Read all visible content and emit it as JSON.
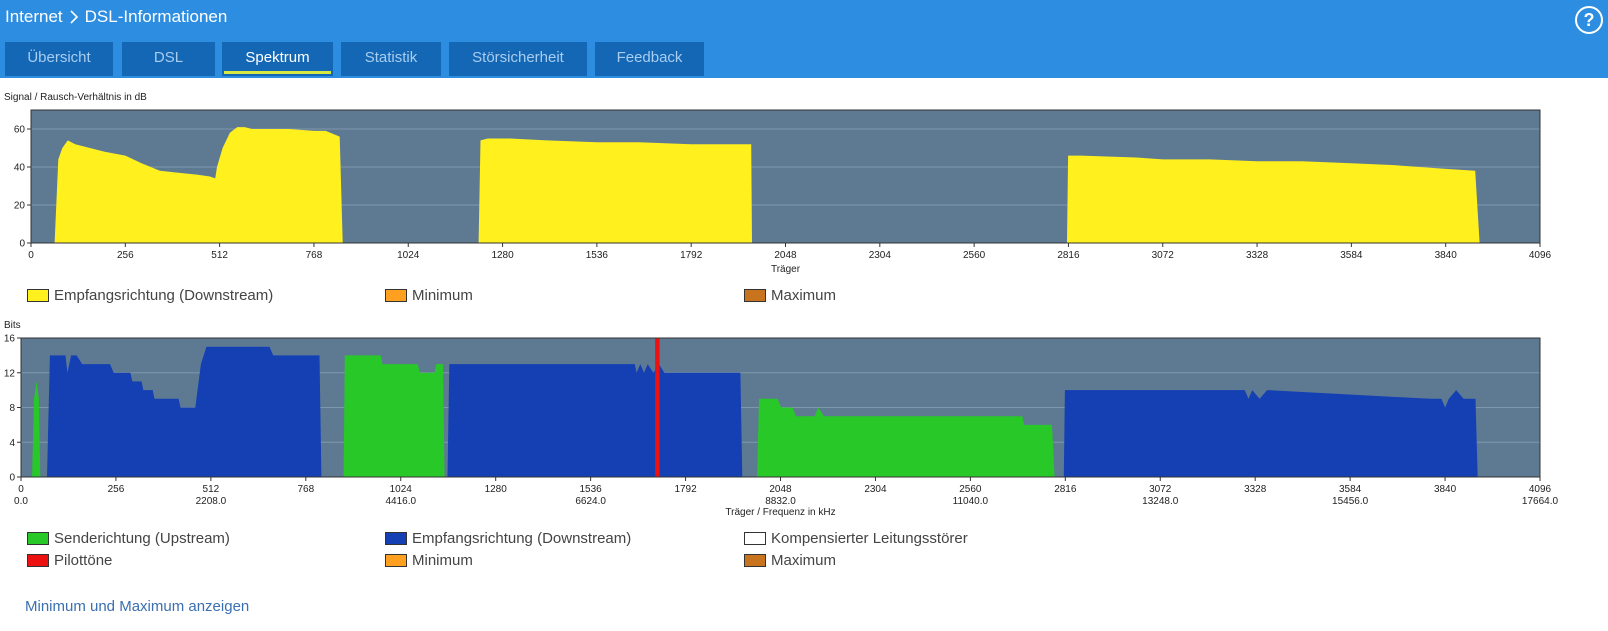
{
  "header": {
    "breadcrumb": [
      "Internet",
      "DSL-Informationen"
    ],
    "help_symbol": "?"
  },
  "tabs": [
    {
      "label": "Übersicht",
      "active": false
    },
    {
      "label": "DSL",
      "active": false
    },
    {
      "label": "Spektrum",
      "active": true
    },
    {
      "label": "Statistik",
      "active": false
    },
    {
      "label": "Störsicherheit",
      "active": false
    },
    {
      "label": "Feedback",
      "active": false
    }
  ],
  "colors": {
    "header_bg": "#2d8de0",
    "tab_bg": "#1467b5",
    "plot_bg": "#5e7a93",
    "downstream_snr": "#fff01e",
    "upstream_bits": "#28c828",
    "downstream_bits": "#1440b4",
    "pilot": "#ee1111",
    "minimum": "#ffa020",
    "maximum": "#c8741e"
  },
  "snr_chart": {
    "title": "Signal / Rausch-Verhältnis in dB",
    "xlabel": "Träger",
    "legend": [
      {
        "label": "Empfangsrichtung (Downstream)",
        "color": "#fff01e"
      },
      {
        "label": "Minimum",
        "color": "#ffa020"
      },
      {
        "label": "Maximum",
        "color": "#c8741e"
      }
    ]
  },
  "bits_chart": {
    "title": "Bits",
    "xlabel": "Träger / Frequenz in kHz",
    "legend": [
      {
        "label": "Senderichtung (Upstream)",
        "color": "#28c828"
      },
      {
        "label": "Empfangsrichtung (Downstream)",
        "color": "#1440b4"
      },
      {
        "label": "Kompensierter Leitungsstörer",
        "color": "#ffffff"
      },
      {
        "label": "Pilottöne",
        "color": "#ee1111"
      },
      {
        "label": "Minimum",
        "color": "#ffa020"
      },
      {
        "label": "Maximum",
        "color": "#c8741e"
      }
    ]
  },
  "chart_data": [
    {
      "type": "area",
      "title": "Signal / Rausch-Verhältnis in dB",
      "xlabel": "Träger",
      "ylabel": "",
      "xlim": [
        0,
        4096
      ],
      "ylim": [
        0,
        70
      ],
      "x_ticks": [
        0,
        256,
        512,
        768,
        1024,
        1280,
        1536,
        1792,
        2048,
        2304,
        2560,
        2816,
        3072,
        3328,
        3584,
        3840,
        4096
      ],
      "y_ticks": [
        0,
        20,
        40,
        60
      ],
      "grid": true,
      "legend_position": "bottom",
      "series": [
        {
          "name": "Empfangsrichtung (Downstream)",
          "color": "#fff01e",
          "segments": [
            [
              [
                64,
                0
              ],
              [
                74,
                44
              ],
              [
                85,
                50
              ],
              [
                100,
                54
              ],
              [
                120,
                52
              ],
              [
                160,
                50
              ],
              [
                200,
                48
              ],
              [
                256,
                46
              ],
              [
                300,
                42
              ],
              [
                350,
                38
              ],
              [
                400,
                37
              ],
              [
                450,
                36
              ],
              [
                486,
                35
              ],
              [
                500,
                34
              ],
              [
                505,
                40
              ],
              [
                520,
                50
              ],
              [
                540,
                58
              ],
              [
                560,
                61
              ],
              [
                580,
                61
              ],
              [
                600,
                60
              ],
              [
                700,
                60
              ],
              [
                768,
                59
              ],
              [
                800,
                59
              ],
              [
                838,
                56
              ],
              [
                846,
                0
              ]
            ],
            [
              [
                1215,
                0
              ],
              [
                1220,
                54
              ],
              [
                1240,
                55
              ],
              [
                1300,
                55
              ],
              [
                1400,
                54
              ],
              [
                1536,
                53
              ],
              [
                1650,
                53
              ],
              [
                1792,
                52
              ],
              [
                1955,
                52
              ],
              [
                1957,
                0
              ]
            ],
            [
              [
                2812,
                0
              ],
              [
                2815,
                46
              ],
              [
                2850,
                46
              ],
              [
                3000,
                45
              ],
              [
                3072,
                44
              ],
              [
                3200,
                44
              ],
              [
                3328,
                43
              ],
              [
                3450,
                43
              ],
              [
                3584,
                42
              ],
              [
                3700,
                41
              ],
              [
                3840,
                39
              ],
              [
                3920,
                38
              ],
              [
                3932,
                0
              ]
            ]
          ]
        }
      ]
    },
    {
      "type": "area",
      "title": "Bits",
      "xlabel": "Träger / Frequenz in kHz",
      "ylabel": "",
      "xlim": [
        0,
        4096
      ],
      "ylim": [
        0,
        16
      ],
      "x_ticks": [
        0,
        256,
        512,
        768,
        1024,
        1280,
        1536,
        1792,
        2048,
        2304,
        2560,
        2816,
        3072,
        3328,
        3584,
        3840,
        4096
      ],
      "x_freq_labels": [
        "0.0",
        "2208.0",
        "4416.0",
        "6624.0",
        "8832.0",
        "11040.0",
        "13248.0",
        "15456.0",
        "17664.0"
      ],
      "y_ticks": [
        0,
        4,
        8,
        12,
        16
      ],
      "grid": true,
      "legend_position": "bottom",
      "series": [
        {
          "name": "Senderichtung (Upstream)",
          "color": "#28c828",
          "segments": [
            [
              [
                30,
                0
              ],
              [
                35,
                9
              ],
              [
                42,
                11
              ],
              [
                48,
                9
              ],
              [
                52,
                0
              ]
            ],
            [
              [
                870,
                0
              ],
              [
                873,
                14
              ],
              [
                970,
                14
              ],
              [
                975,
                13
              ],
              [
                1070,
                13
              ],
              [
                1075,
                12
              ],
              [
                1115,
                12
              ],
              [
                1120,
                13
              ],
              [
                1138,
                13
              ],
              [
                1142,
                0
              ]
            ],
            [
              [
                1985,
                0
              ],
              [
                1990,
                9
              ],
              [
                2040,
                9
              ],
              [
                2050,
                8
              ],
              [
                2080,
                8
              ],
              [
                2090,
                7
              ],
              [
                2140,
                7
              ],
              [
                2150,
                8
              ],
              [
                2165,
                7
              ],
              [
                2560,
                7
              ],
              [
                2700,
                7
              ],
              [
                2705,
                6
              ],
              [
                2780,
                6
              ],
              [
                2787,
                0
              ]
            ]
          ]
        },
        {
          "name": "Empfangsrichtung (Downstream)",
          "color": "#1440b4",
          "segments": [
            [
              [
                70,
                0
              ],
              [
                78,
                14
              ],
              [
                120,
                14
              ],
              [
                125,
                12
              ],
              [
                135,
                14
              ],
              [
                150,
                14
              ],
              [
                165,
                13
              ],
              [
                240,
                13
              ],
              [
                250,
                12
              ],
              [
                295,
                12
              ],
              [
                300,
                11
              ],
              [
                325,
                11
              ],
              [
                330,
                10
              ],
              [
                355,
                10
              ],
              [
                360,
                9
              ],
              [
                425,
                9
              ],
              [
                430,
                8
              ],
              [
                470,
                8
              ],
              [
                485,
                13
              ],
              [
                500,
                15
              ],
              [
                670,
                15
              ],
              [
                680,
                14
              ],
              [
                805,
                14
              ],
              [
                810,
                0
              ]
            ],
            [
              [
                1150,
                0
              ],
              [
                1155,
                13
              ],
              [
                1655,
                13
              ],
              [
                1660,
                12
              ],
              [
                1670,
                13
              ],
              [
                1680,
                12
              ],
              [
                1690,
                13
              ],
              [
                1705,
                12
              ],
              [
                1720,
                13
              ],
              [
                1735,
                12
              ],
              [
                1940,
                12
              ],
              [
                1945,
                0
              ]
            ],
            [
              [
                2812,
                0
              ],
              [
                2815,
                10
              ],
              [
                3300,
                10
              ],
              [
                3310,
                9
              ],
              [
                3320,
                10
              ],
              [
                3340,
                9
              ],
              [
                3360,
                10
              ],
              [
                3800,
                9
              ],
              [
                3830,
                9
              ],
              [
                3840,
                8
              ],
              [
                3850,
                9
              ],
              [
                3870,
                10
              ],
              [
                3890,
                9
              ],
              [
                3922,
                9
              ],
              [
                3928,
                0
              ]
            ]
          ]
        },
        {
          "name": "Pilottöne",
          "color": "#ee1111",
          "bars": [
            [
              1710,
              1722
            ]
          ]
        }
      ]
    }
  ],
  "toggle_link": "Minimum und Maximum anzeigen"
}
